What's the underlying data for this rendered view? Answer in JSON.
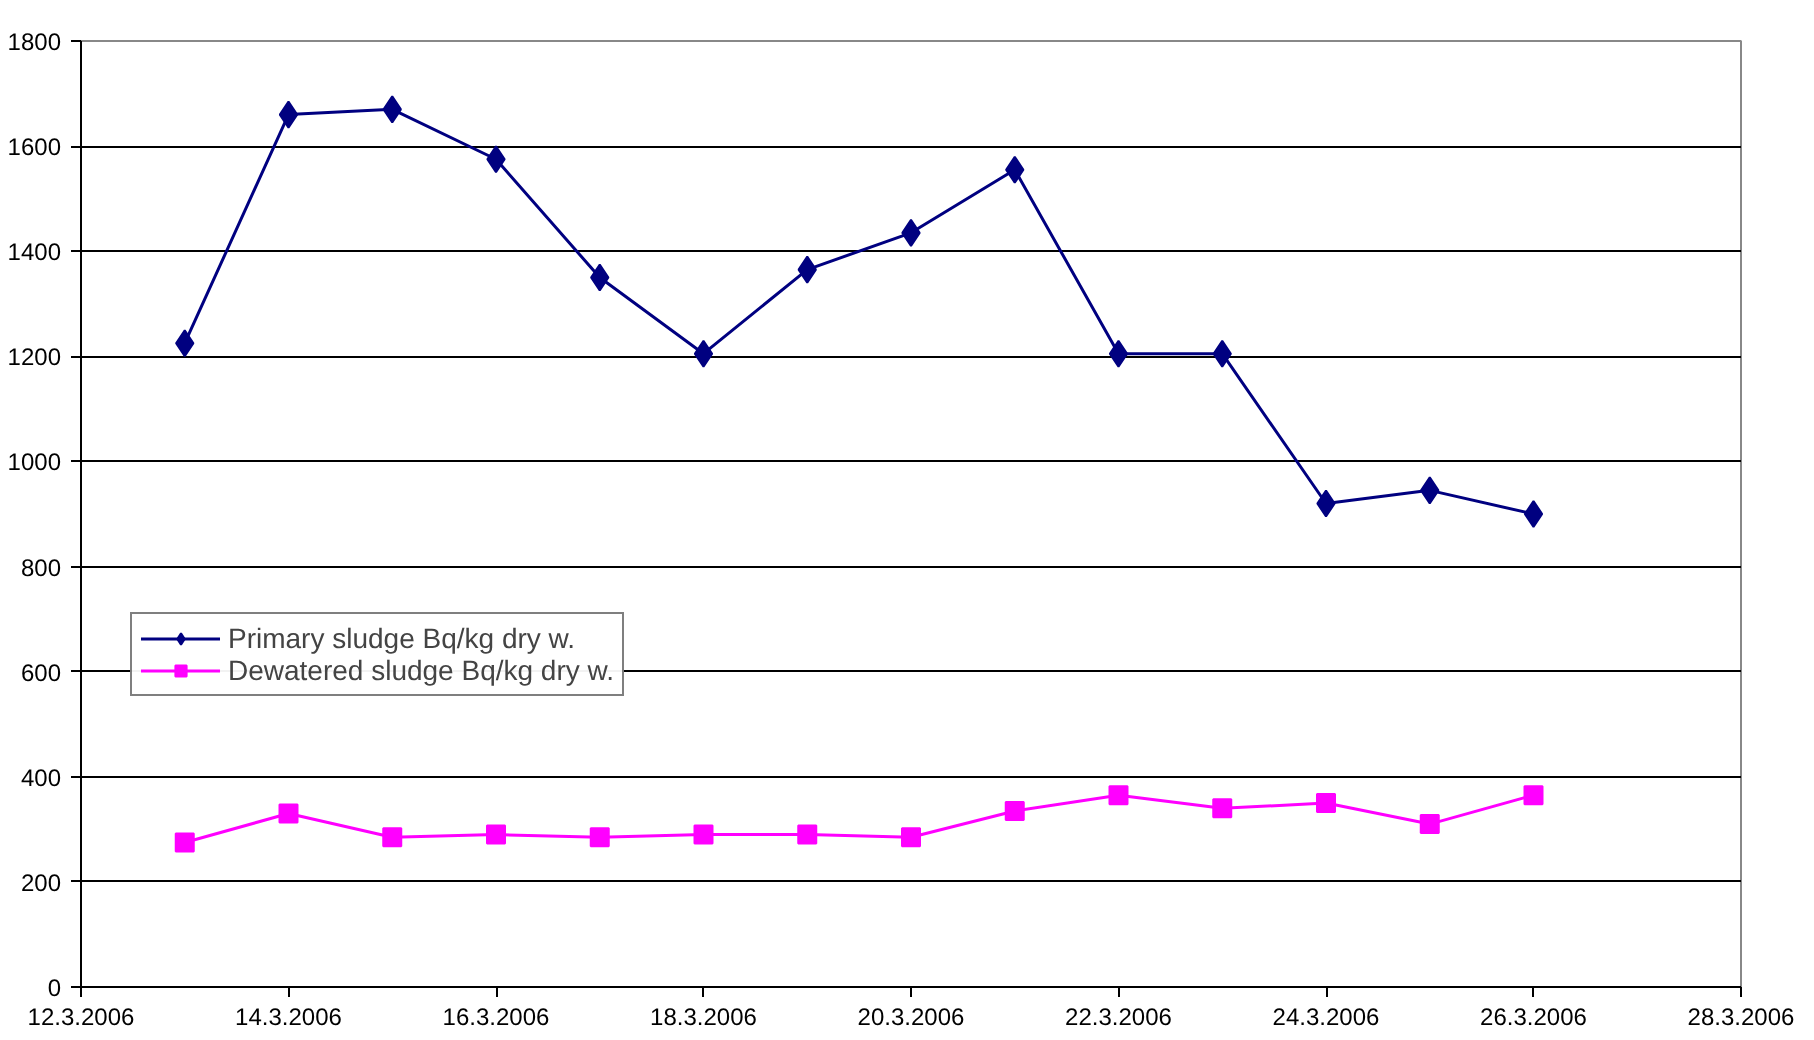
{
  "chart_data": {
    "type": "line",
    "x": [
      "2006-03-13",
      "2006-03-14",
      "2006-03-15",
      "2006-03-16",
      "2006-03-17",
      "2006-03-18",
      "2006-03-19",
      "2006-03-20",
      "2006-03-21",
      "2006-03-22",
      "2006-03-23",
      "2006-03-24",
      "2006-03-25",
      "2006-03-26"
    ],
    "series": [
      {
        "name": "Primary sludge Bq/kg dry w.",
        "color": "#000080",
        "marker": "diamond",
        "values": [
          1225,
          1660,
          1670,
          1575,
          1350,
          1205,
          1365,
          1435,
          1555,
          1205,
          1205,
          920,
          945,
          900
        ]
      },
      {
        "name": "Dewatered sludge Bq/kg dry w.",
        "color": "#ff00ff",
        "marker": "square",
        "values": [
          275,
          330,
          285,
          290,
          285,
          290,
          290,
          285,
          335,
          365,
          340,
          350,
          310,
          365
        ]
      }
    ],
    "xlim": [
      "2006-03-12",
      "2006-03-28"
    ],
    "xticks": [
      {
        "value": "2006-03-12",
        "label": "12.3.2006"
      },
      {
        "value": "2006-03-14",
        "label": "14.3.2006"
      },
      {
        "value": "2006-03-16",
        "label": "16.3.2006"
      },
      {
        "value": "2006-03-18",
        "label": "18.3.2006"
      },
      {
        "value": "2006-03-20",
        "label": "20.3.2006"
      },
      {
        "value": "2006-03-22",
        "label": "22.3.2006"
      },
      {
        "value": "2006-03-24",
        "label": "24.3.2006"
      },
      {
        "value": "2006-03-26",
        "label": "26.3.2006"
      },
      {
        "value": "2006-03-28",
        "label": "28.3.2006"
      }
    ],
    "ylim": [
      0,
      1800
    ],
    "yticks": [
      0,
      200,
      400,
      600,
      800,
      1000,
      1200,
      1400,
      1600,
      1800
    ],
    "grid": "y",
    "legend": "left"
  }
}
